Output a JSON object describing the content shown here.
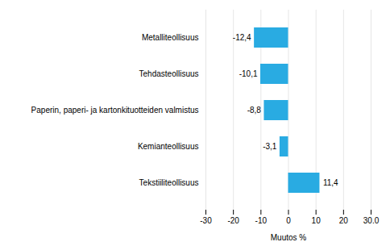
{
  "chart_data": {
    "type": "bar",
    "orientation": "horizontal",
    "categories": [
      "Metalliteollisuus",
      "Tehdasteollisuus",
      "Paperin, paperi- ja kartonkituotteiden valmistus",
      "Kemianteollisuus",
      "Tekstiiliteollisuus"
    ],
    "values": [
      -12.4,
      -10.1,
      -8.8,
      -3.1,
      11.4
    ],
    "value_labels": [
      "-12,4",
      "-10,1",
      "-8,8",
      "-3,1",
      "11,4"
    ],
    "data_labels": true,
    "color": "#29ABE2",
    "xlabel": "Muutos %",
    "xlim": [
      -30,
      30.0
    ],
    "xticks": [
      -30,
      -20,
      -10,
      0,
      10,
      20,
      {
        "value": 30,
        "label": "30.0"
      }
    ],
    "grid": true
  }
}
